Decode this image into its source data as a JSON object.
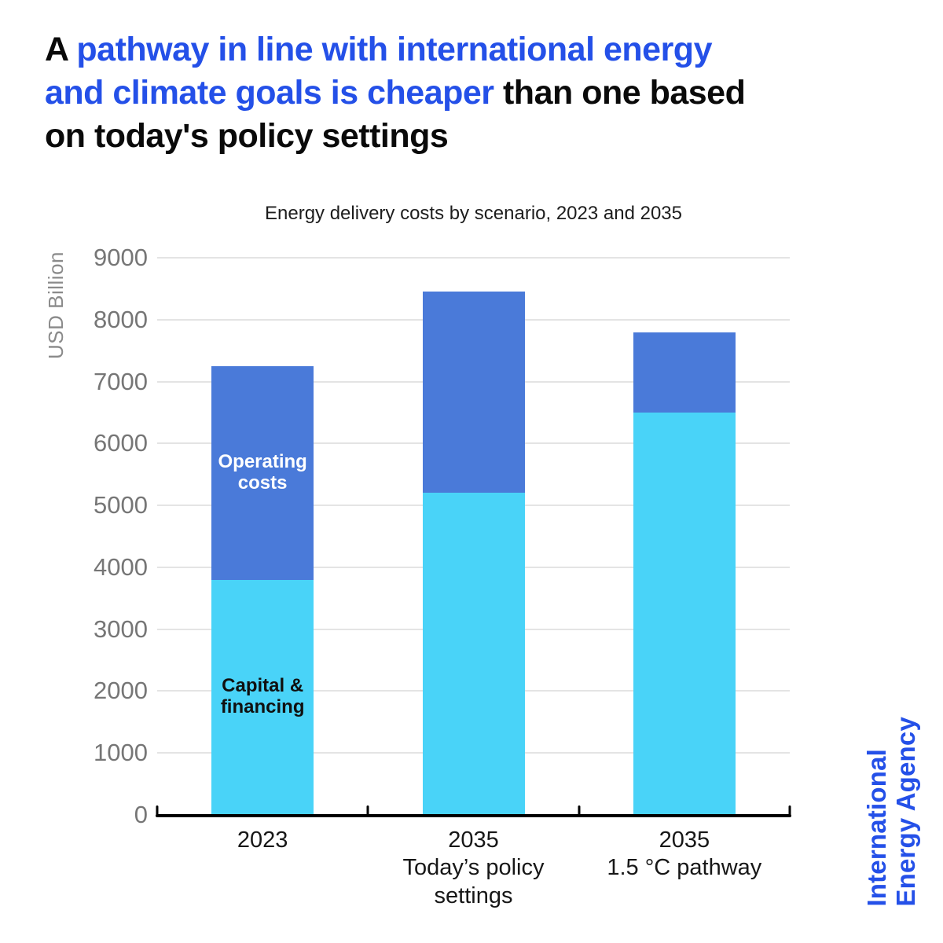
{
  "title": {
    "line1_black": "A ",
    "line1_blue": "pathway in line with international energy",
    "line2_blue": "and climate goals is cheaper",
    "line2_black": " than one based",
    "line3_black": "on today's policy settings"
  },
  "footer": {
    "brand_line1": "International",
    "brand_line2": "Energy Agency"
  },
  "colors": {
    "accent_blue": "#2450E8",
    "bar_light_blue": "#49D3F8",
    "bar_dark_blue": "#4A7AD9",
    "gridline": "#e4e4e4",
    "axis": "#000000"
  },
  "chart_data": {
    "type": "bar",
    "stacked": true,
    "title": "Energy delivery costs by scenario, 2023 and 2035",
    "ylabel": "USD Billion",
    "xlabel": "",
    "ylim": [
      0,
      9000
    ],
    "ytick_step": 1000,
    "grid": true,
    "legend_position": "labels-inside-first-bar",
    "categories": [
      {
        "label": "2023",
        "sublabel": ""
      },
      {
        "label": "2035",
        "sublabel": "Today’s policy settings"
      },
      {
        "label": "2035",
        "sublabel": "1.5 °C pathway"
      }
    ],
    "series": [
      {
        "name": "Capital & financing",
        "color": "#49D3F8",
        "values": [
          3800,
          5200,
          6500
        ]
      },
      {
        "name": "Operating costs",
        "color": "#4A7AD9",
        "values": [
          3450,
          3250,
          1300
        ]
      }
    ],
    "totals": [
      7250,
      8450,
      7800
    ],
    "in_bar_labels": [
      {
        "series": 0,
        "bar": 0,
        "text": "Capital &\nfinancing",
        "color": "#101010"
      },
      {
        "series": 1,
        "bar": 0,
        "text": "Operating\ncosts",
        "color": "#ffffff"
      }
    ]
  }
}
